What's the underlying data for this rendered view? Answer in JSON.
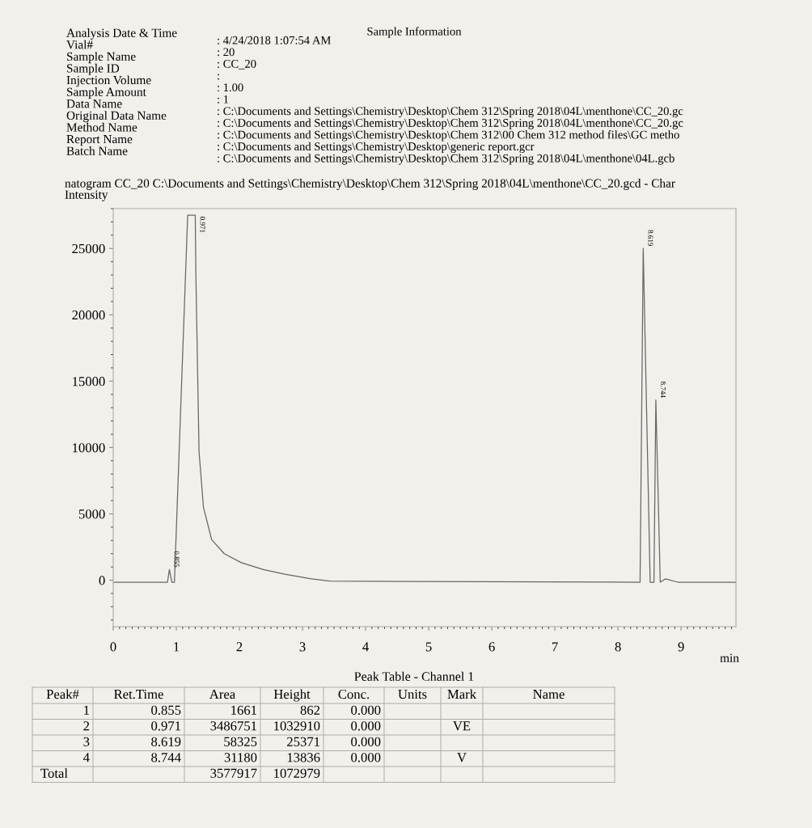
{
  "chart_data": {
    "type": "line",
    "title": "natogram CC_20 C:\\Documents and Settings\\Chemistry\\Desktop\\Chem 312\\Spring 2018\\04L\\menthone\\CC_20.gcd - Char",
    "ylabel": "Intensity",
    "xlabel": "min",
    "series": [
      {
        "color": "#666666",
        "x": [
          0.0,
          0.8,
          0.86,
          0.89,
          0.93,
          0.97,
          1.18,
          1.3,
          1.31,
          1.36,
          1.43,
          1.56,
          1.76,
          2.03,
          2.38,
          2.72,
          3.14,
          3.43,
          8.35,
          8.4,
          8.51,
          8.57,
          8.6,
          8.67,
          8.75,
          8.95,
          9.87
        ],
        "values": [
          -150,
          -150,
          -150,
          800,
          -150,
          -150,
          27500,
          27500,
          23000,
          9700,
          5500,
          3060,
          2000,
          1320,
          800,
          450,
          100,
          -70,
          -150,
          25000,
          -150,
          -150,
          13580,
          -150,
          100,
          -150,
          -150
        ]
      }
    ],
    "xlim": [
      0,
      9.87
    ],
    "xticks": [
      0,
      1,
      2,
      3,
      4,
      5,
      6,
      7,
      8,
      9
    ],
    "ylim": [
      -3500,
      28000
    ],
    "yticks": [
      0,
      5000,
      10000,
      15000,
      20000,
      25000
    ],
    "grid": false,
    "legend": false,
    "marker": "none",
    "line_style": "solid",
    "annotations": [
      "Sample Information",
      "Analysis Date & Time",
      "Vial#",
      "Sample Name",
      "Sample ID",
      "Injection Volume",
      "Sample Amount",
      "Data Name",
      "Original Data Name",
      "Method Name",
      "Report Name",
      "Batch Name",
      ": 4/24/2018 1:07:54 AM",
      ": 20",
      ": CC_20",
      ":",
      ": 1.00",
      ": 1",
      ": C:\\Documents and Settings\\Chemistry\\Desktop\\Chem 312\\Spring 2018\\04L\\menthone\\CC_20.gc",
      ": C:\\Documents and Settings\\Chemistry\\Desktop\\Chem 312\\Spring 2018\\04L\\menthone\\CC_20.gc",
      ": C:\\Documents and Settings\\Chemistry\\Desktop\\Chem 312\\00 Chem 312 method files\\GC metho",
      ": C:\\Documents and Settings\\Chemistry\\Desktop\\generic report.gcr",
      ": C:\\Documents and Settings\\Chemistry\\Desktop\\Chem 312\\Spring 2018\\04L\\menthone\\04L.gcb",
      "Peak Table - Channel 1",
      "Peak#",
      "Ret.Time",
      "Area",
      "Height",
      "Conc.",
      "Units",
      "Mark",
      "Name",
      "1",
      "0.855",
      "1661",
      "862",
      "0.000",
      null,
      null,
      null,
      "2",
      "0.971",
      "3486751",
      "1032910",
      "0.000",
      null,
      "VE",
      null,
      "3",
      "8.619",
      "58325",
      "25371",
      "0.000",
      null,
      null,
      null,
      "4",
      "8.744",
      "31180",
      "13836",
      "0.000",
      null,
      "V",
      null,
      "Total",
      null,
      "3577917",
      "1072979",
      null,
      null,
      null,
      null,
      {
        "text": "0.855",
        "x": 0.89,
        "y": 800
      },
      {
        "text": "0.971",
        "x": 1.3,
        "y": 26000
      },
      {
        "text": "8.619",
        "x": 8.4,
        "y": 25000
      },
      {
        "text": "8.744",
        "x": 8.6,
        "y": 13580
      }
    ]
  }
}
